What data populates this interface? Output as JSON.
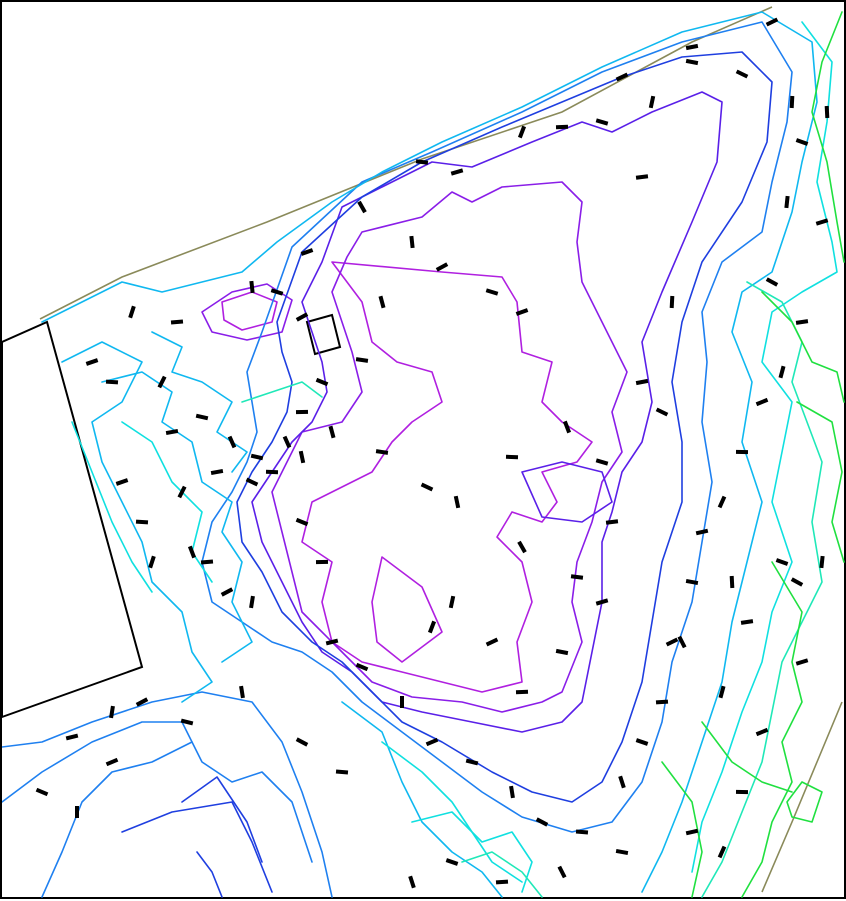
{
  "map": {
    "kind": "topographic contour plan",
    "colors": {
      "violet": "#b020e0",
      "purple": "#8a1ee8",
      "indigo": "#5a20e8",
      "blue": "#1f3fe0",
      "mid_blue": "#1f80f0",
      "sky": "#10b8f0",
      "cyan": "#10e0e0",
      "aqua": "#20e8b8",
      "green": "#20e040",
      "boundary": "#8a8a5a",
      "building": "#000000"
    }
  }
}
